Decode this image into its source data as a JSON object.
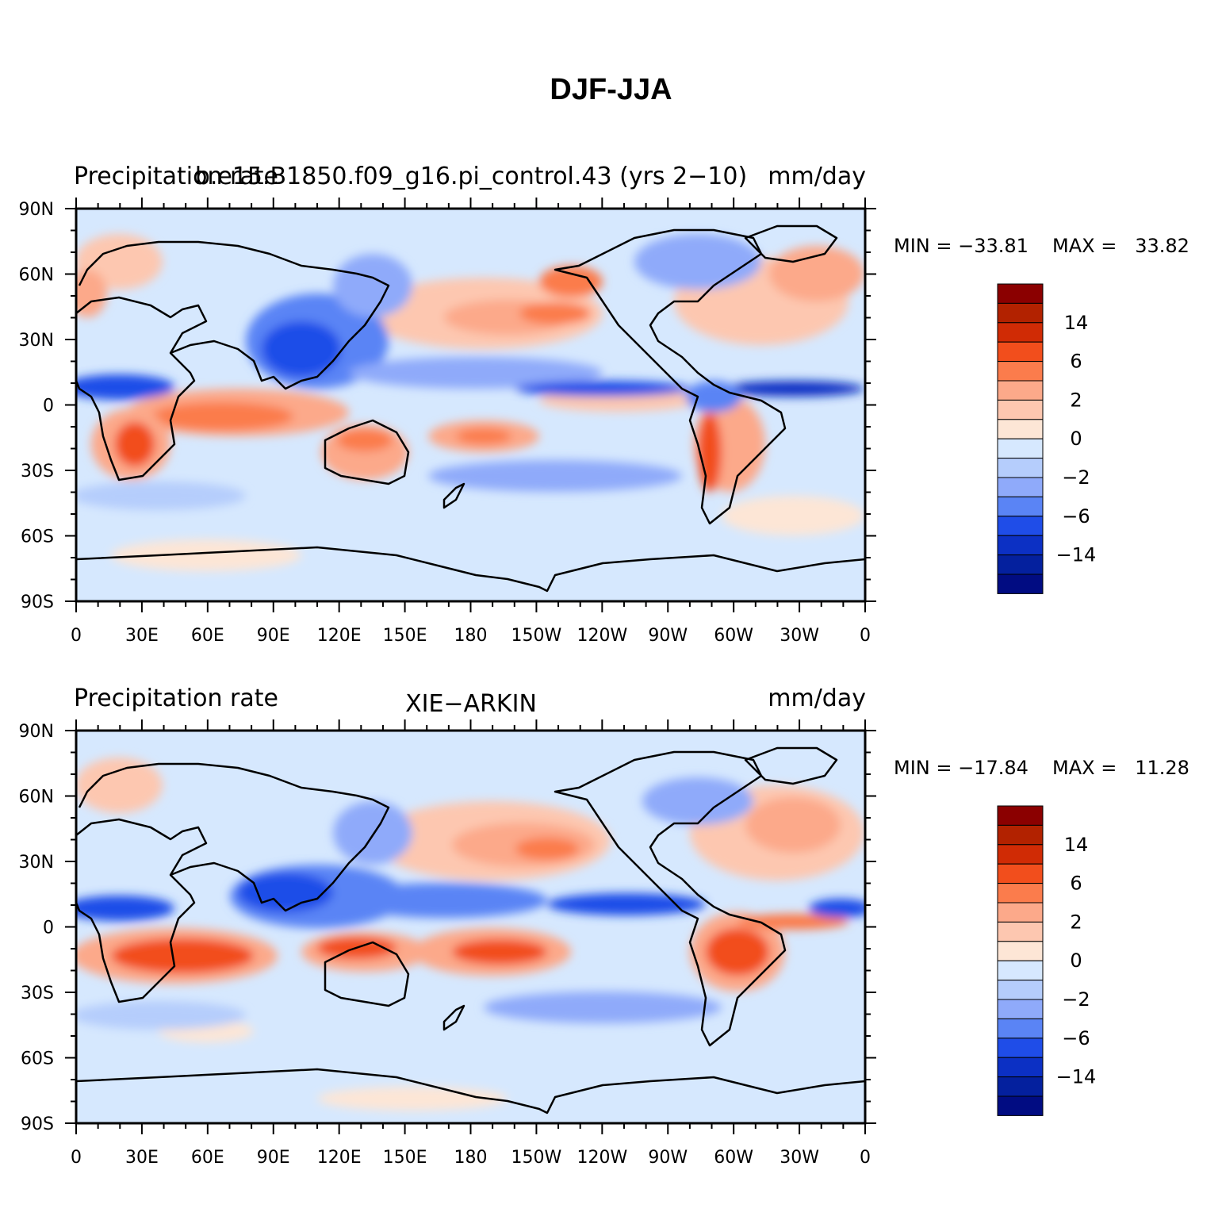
{
  "figure": {
    "title": "DJF-JJA"
  },
  "colorbar": {
    "levels": [
      -24,
      -18,
      -14,
      -10,
      -6,
      -4,
      -2,
      -1,
      0,
      1,
      2,
      4,
      6,
      10,
      14,
      18
    ],
    "tick_labels": [
      "14",
      "6",
      "2",
      "0",
      "−2",
      "−6",
      "−14"
    ],
    "colors": [
      "#8b0000",
      "#b22200",
      "#d02b05",
      "#f24e1c",
      "#fb7c4c",
      "#fca98a",
      "#fdc7b0",
      "#fde6d6",
      "#d6e8fe",
      "#b5cdfc",
      "#8faafa",
      "#5a84f5",
      "#1f4de8",
      "#0c30c4",
      "#04209e",
      "#010c82"
    ]
  },
  "axes": {
    "lat_labels": [
      "90N",
      "60N",
      "30N",
      "0",
      "30S",
      "60S",
      "90S"
    ],
    "lon_labels": [
      "0",
      "30E",
      "60E",
      "90E",
      "120E",
      "150E",
      "180",
      "150W",
      "120W",
      "90W",
      "60W",
      "30W",
      "0"
    ]
  },
  "panels": [
    {
      "left_label": "Precipitation rate",
      "center_label": "b.e15.B1850.f09_g16.pi_control.43 (yrs 2−10)",
      "right_label": "mm/day",
      "min_label": "MIN = −33.81",
      "max_label": "MAX =   33.82"
    },
    {
      "left_label": "Precipitation rate",
      "center_label": "XIE−ARKIN",
      "right_label": "mm/day",
      "min_label": "MIN = −17.84",
      "max_label": "MAX =   11.28"
    }
  ]
}
